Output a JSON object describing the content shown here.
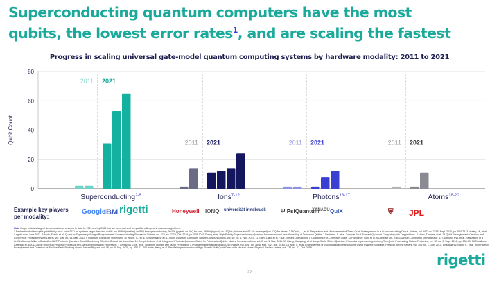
{
  "title": {
    "line1": "Superconducting quantum computers have the most",
    "line2_a": "qubits, the lowest error rates",
    "line2_sup": "1",
    "line2_b": ", and are scaling the fastest"
  },
  "subtitle": "Progress in scaling universal gate-model quantum computing systems by hardware modality: 2011 to 2021",
  "chart_data": {
    "type": "bar",
    "title": "Progress in scaling universal gate-model quantum computing systems by hardware modality: 2011 to 2021",
    "xlabel": "",
    "ylabel": "Qubit Count",
    "ylim": [
      0,
      80
    ],
    "yticks": [
      0,
      20,
      40,
      60,
      80
    ],
    "grid": true,
    "groups": [
      {
        "name": "Superconducting",
        "ref": "2-6",
        "color_2011": "#6fd3c8",
        "color_2021": "#14b0a0",
        "label_2011_color": "#8fd8cf",
        "label_2021_color": "#14a898",
        "values_2011": [
          2,
          2
        ],
        "values_2021": [
          31,
          53,
          65
        ]
      },
      {
        "name": "Ions",
        "ref": "7-12",
        "color_2011": "#6b6b85",
        "color_2021": "#15175e",
        "label_2011_color": "#999999",
        "label_2021_color": "#15175e",
        "values_2011": [
          1.5,
          14
        ],
        "values_2021": [
          11,
          12,
          14,
          24
        ]
      },
      {
        "name": "Photons",
        "ref": "13-17",
        "color_2011": "#9092e6",
        "color_2021": "#3b3fd1",
        "label_2011_color": "#9b9de6",
        "label_2021_color": "#3b3fd1",
        "values_2011": [
          1.5,
          1.5
        ],
        "values_2021": [
          1.5,
          8,
          12
        ]
      },
      {
        "name": "Atoms",
        "ref": "18-20",
        "color_2011": "#b5b5b5",
        "color_2021": "#8a8a93",
        "label_2011_color": "#999999",
        "label_2021_color": "#333333",
        "values_2011": [
          1.5
        ],
        "values_2021": [
          1.5,
          11
        ]
      }
    ],
    "period_labels": [
      "2011",
      "2021"
    ]
  },
  "players": {
    "label_line1": "Example key players",
    "label_line2": "per modality:",
    "logos": [
      {
        "name": "Google",
        "color": "#4285f4"
      },
      {
        "name": "IBM",
        "color": "#3b5bbf"
      },
      {
        "name": "rigetti",
        "color": "#1aa99a"
      },
      {
        "name": "Honeywell",
        "color": "#d0202e"
      },
      {
        "name": "IONQ",
        "color": "#555555"
      },
      {
        "name": "universität innsbruck",
        "color": "#223377"
      },
      {
        "name": "PsiQuantum",
        "color": "#333333"
      },
      {
        "name": "XANADU",
        "color": "#555555"
      },
      {
        "name": "QuiX",
        "color": "#3355aa"
      },
      {
        "name": "Harvard",
        "color": "#8a1c1c"
      },
      {
        "name": "JPL",
        "color": "#e01a1a"
      }
    ]
  },
  "note": {
    "prefix": "Note",
    "text": "Graph includes largest demonstration of systems to date by 2011 and by 2021 that are universal and compatible with generic quantum algorithms.",
    "refs": "1 Best estimated two-qubit gate fidelity as of June 2021 on systems larger than two qubits are 99.8% (median) on 53Q for superconducting, 99.5% (typical) on 10Q for ions, 98.9% (typical) on 16Q for photons and 97.4% (averaged) on 13Q for atoms. 2 DiCarlo, L., et al. Preparation and Measurement of Three-Qubit Entanglement in a Superconducting Circuit. Nature, vol. 467, no. 7315, Sept. 2010, pp. 574-78. 3 Neeley, M., et al. 4 rigetti.com, June 2021. 5 Arute, Frank, et al. Quantum Supremacy Using a Programmable Superconducting Processor. Nature, vol. 574, no. 7779, Oct. 2019, pp. 505-10. 6 Zhang, et al. High-Fidelity Superconducting Quantum Processors via Laser-Annealing of Transmon Qubits. 7 Benhelm, J., et al. Towards Fault-Tolerant Quantum Computing with Trapped Ions. 8 Monz, Thomas, et al. 14-Qubit Entanglement: Creation and Coherence. Physical Review Letters, vol. 106, no. 13, Mar. 2011. 9 Quantum Computer. Honeywell. 10 Wright, K., et al. Benchmarking an 11-Qubit Quantum Computer. Nature Communications, vol. 10, no. 1, Nov. 2019. 11 Egan, Laird, et al. Fault-Tolerant Operation of a Quantum Error-Correction Code. 12 Pogorelov, Ivan, et al. A Compact Ion-Trap Quantum Computing Demonstrator. 13 Okamoto, Ryo, et al. Realization of a Knill-Laflamme-Milburn Controlled-NOT Photonic Quantum Circuit Combining Effective Optical Nonlinearities. 14 Crespi, Andrea, et al. Integrated Photonic Quantum Gates for Polarization Qubits. Nature Communications, vol. 2, no. 1, Nov. 2011. 15 Qiang, Xiaogang, et al. Large-Scale Silicon Quantum Photonics Implementing Arbitrary Two-Qubit Processing. Nature Photonics, vol. 12, no. 9, Sept. 2018, pp. 534-39. 16 Taballione, Caterina, et al. A 12-Mode Universal Photonic Processor for Quantum Information Processing. 17 Arrazola, J. M., et al. Quantum Circuits with Many Photons on a Programmable Nanophotonic Chip. Nature, vol. 591, no. 7848, Mar. 2021, pp. 54-60. 18 Wilk, T., et al. Entanglement of Two Individual Neutral Atoms Using Rydberg Blockade. Physical Review Letters, vol. 104, no. 1, Jan. 2010. 19 Madjarov, Ivaylo S., et al. High-Fidelity Entanglement and Detection of Alkaline-Earth Rydberg Atoms. Nature Physics, vol. 16, no. 8, Aug. 2020, pp. 857-61. 20 Levine, Harry, et al. Parallel Implementation of High-Fidelity Multi-Qubit Gates with Neutral Atoms. Physical Review Letters, vol. 123, no. 17, Oct. 2019."
  },
  "brand": "rigetti",
  "page_number": "22"
}
